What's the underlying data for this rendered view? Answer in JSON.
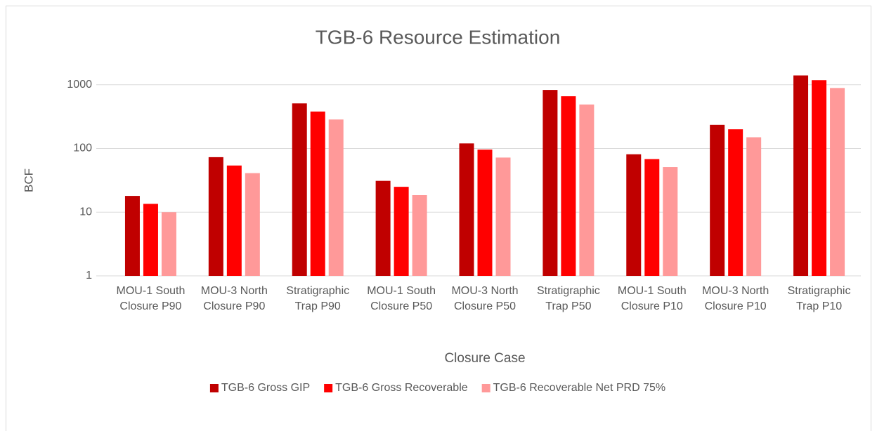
{
  "chart_data": {
    "type": "bar",
    "title": "TGB-6 Resource Estimation",
    "x_label": "Closure Case",
    "y_label": "BCF",
    "categories": [
      "MOU-1 South Closure P90",
      "MOU-3 North Closure P90",
      "Stratigraphic Trap P90",
      "MOU-1 South Closure P50",
      "MOU-3 North Closure P50",
      "Stratigraphic Trap P50",
      "MOU-1 South Closure P10",
      "MOU-3 North Closure P10",
      "Stratigraphic Trap P10"
    ],
    "series": [
      {
        "name": "TGB-6 Gross GIP",
        "color": "#c00000",
        "values": [
          18,
          73,
          510,
          31,
          120,
          830,
          81,
          235,
          1400
        ]
      },
      {
        "name": "TGB-6 Gross Recoverable",
        "color": "#ff0000",
        "values": [
          13.5,
          54,
          380,
          25,
          96,
          660,
          68,
          200,
          1180
        ]
      },
      {
        "name": "TGB-6 Recoverable Net PRD 75%",
        "color": "#ff9999",
        "values": [
          10,
          41,
          285,
          18.5,
          72,
          490,
          51,
          150,
          890
        ]
      }
    ],
    "ylim": [
      1,
      10000
    ],
    "yticks": [
      1,
      10,
      100,
      1000
    ],
    "log_y": true,
    "grid": true,
    "legend": "bottom"
  }
}
